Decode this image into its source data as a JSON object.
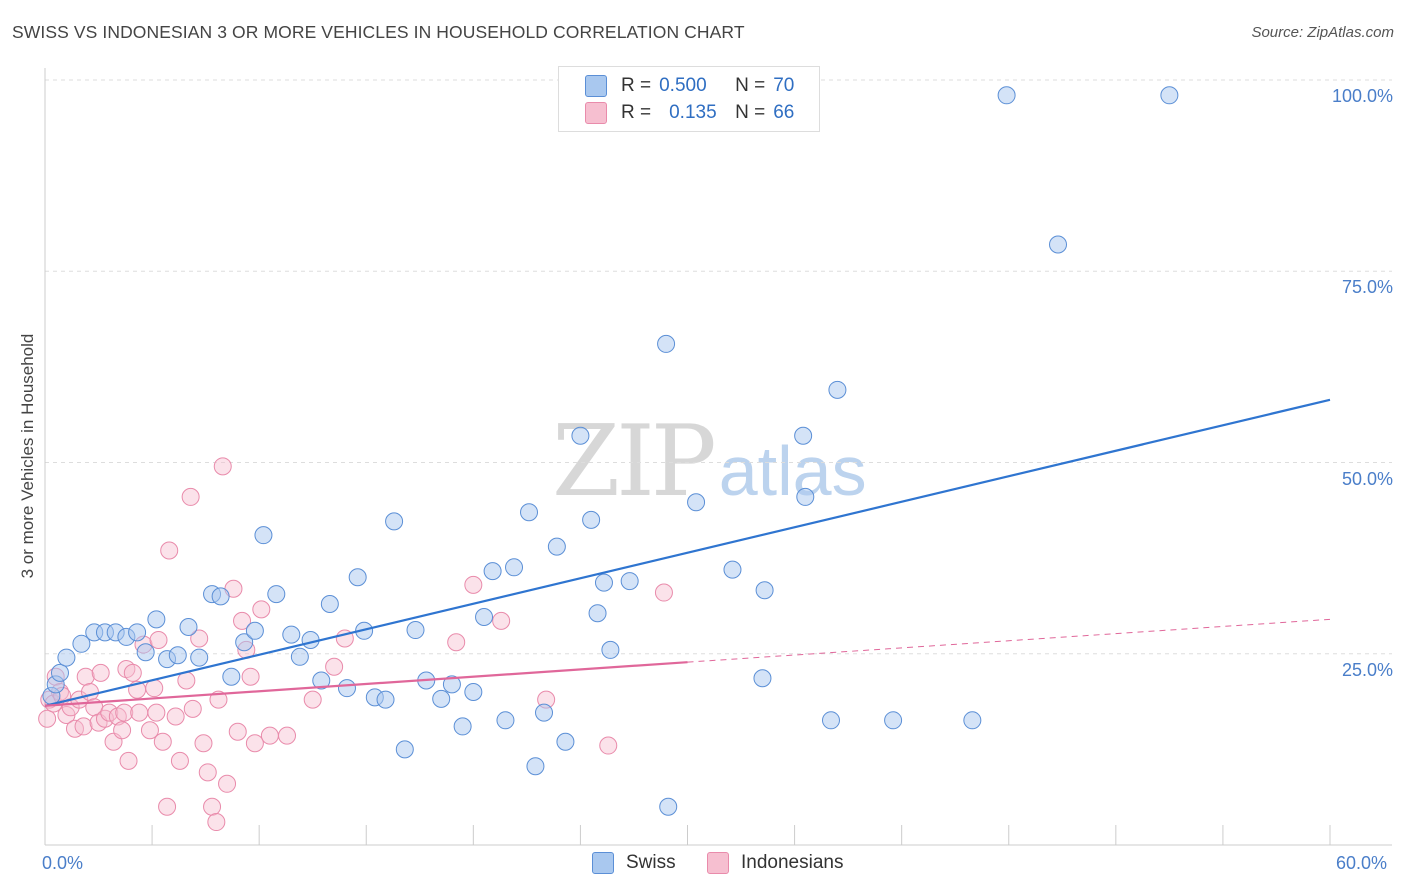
{
  "title": "SWISS VS INDONESIAN 3 OR MORE VEHICLES IN HOUSEHOLD CORRELATION CHART",
  "source": "Source: ZipAtlas.com",
  "watermark": {
    "zip": "ZIP",
    "atlas": "atlas"
  },
  "colors": {
    "swiss_fill": "#a9c8ef",
    "swiss_stroke": "#5b8fd6",
    "swiss_line": "#2f75d0",
    "indo_fill": "#f6bfd0",
    "indo_stroke": "#e98bab",
    "indo_line": "#e0679a",
    "tick_text": "#4a7ec9",
    "grid": "#dddddd"
  },
  "legend": {
    "rows": [
      {
        "r_label": "R =",
        "r_value": "0.500",
        "n_label": "N =",
        "n_value": "70"
      },
      {
        "r_label": "R =",
        "r_value": "0.135",
        "n_label": "N =",
        "n_value": "66"
      }
    ]
  },
  "bottom_legend": {
    "swiss": "Swiss",
    "indonesians": "Indonesians"
  },
  "chart_data": {
    "type": "scatter",
    "title": "SWISS VS INDONESIAN 3 OR MORE VEHICLES IN HOUSEHOLD CORRELATION CHART",
    "xlabel": "",
    "ylabel": "3 or more Vehicles in Household",
    "xlim": [
      0,
      60
    ],
    "ylim": [
      0,
      100
    ],
    "x_tick_labels": [
      "0.0%",
      "60.0%"
    ],
    "y_ticks": [
      25,
      50,
      75,
      100
    ],
    "y_tick_labels": [
      "25.0%",
      "50.0%",
      "75.0%",
      "100.0%"
    ],
    "series": [
      {
        "name": "Swiss",
        "r": 0.5,
        "n": 70,
        "trend": {
          "x0": 0,
          "y0": 18.2,
          "x1": 60,
          "y1": 58.2
        },
        "points": [
          [
            0.3,
            19.5
          ],
          [
            0.5,
            21.0
          ],
          [
            0.7,
            22.5
          ],
          [
            1.0,
            24.5
          ],
          [
            1.7,
            26.3
          ],
          [
            2.3,
            27.8
          ],
          [
            2.8,
            27.8
          ],
          [
            3.3,
            27.8
          ],
          [
            3.8,
            27.2
          ],
          [
            4.3,
            27.8
          ],
          [
            4.7,
            25.2
          ],
          [
            5.2,
            29.5
          ],
          [
            5.7,
            24.3
          ],
          [
            6.2,
            24.8
          ],
          [
            6.7,
            28.5
          ],
          [
            7.2,
            24.5
          ],
          [
            7.8,
            32.8
          ],
          [
            8.2,
            32.5
          ],
          [
            8.7,
            22.0
          ],
          [
            9.3,
            26.5
          ],
          [
            9.8,
            28.0
          ],
          [
            10.2,
            40.5
          ],
          [
            10.8,
            32.8
          ],
          [
            11.5,
            27.5
          ],
          [
            11.9,
            24.6
          ],
          [
            12.4,
            26.8
          ],
          [
            12.9,
            21.5
          ],
          [
            13.3,
            31.5
          ],
          [
            14.1,
            20.5
          ],
          [
            14.6,
            35.0
          ],
          [
            14.9,
            28.0
          ],
          [
            15.4,
            19.3
          ],
          [
            15.9,
            19.0
          ],
          [
            16.3,
            42.3
          ],
          [
            16.8,
            12.5
          ],
          [
            17.3,
            28.1
          ],
          [
            17.8,
            21.5
          ],
          [
            18.5,
            19.1
          ],
          [
            19.0,
            21.0
          ],
          [
            19.5,
            15.5
          ],
          [
            20.0,
            20.0
          ],
          [
            20.5,
            29.8
          ],
          [
            20.9,
            35.8
          ],
          [
            21.5,
            16.3
          ],
          [
            21.9,
            36.3
          ],
          [
            22.6,
            43.5
          ],
          [
            22.9,
            10.3
          ],
          [
            23.3,
            17.3
          ],
          [
            23.9,
            39.0
          ],
          [
            24.3,
            13.5
          ],
          [
            25.0,
            53.5
          ],
          [
            25.5,
            42.5
          ],
          [
            25.8,
            30.3
          ],
          [
            26.1,
            34.3
          ],
          [
            26.4,
            25.5
          ],
          [
            27.3,
            34.5
          ],
          [
            29.0,
            65.5
          ],
          [
            29.1,
            5.0
          ],
          [
            30.4,
            44.8
          ],
          [
            32.1,
            36.0
          ],
          [
            33.5,
            21.8
          ],
          [
            33.6,
            33.3
          ],
          [
            35.4,
            53.5
          ],
          [
            35.5,
            45.5
          ],
          [
            36.7,
            16.3
          ],
          [
            37.0,
            59.5
          ],
          [
            39.6,
            16.3
          ],
          [
            43.3,
            16.3
          ],
          [
            44.9,
            98.0
          ],
          [
            47.3,
            78.5
          ],
          [
            52.5,
            98.0
          ]
        ]
      },
      {
        "name": "Indonesians",
        "r": 0.135,
        "n": 66,
        "trend": {
          "x0": 0,
          "y0": 18.2,
          "x1": 30,
          "y1": 23.9
        },
        "trend_dashed": {
          "x0": 30,
          "y0": 23.9,
          "x1": 60,
          "y1": 29.5
        },
        "points": [
          [
            0.1,
            16.5
          ],
          [
            0.2,
            19.0
          ],
          [
            0.4,
            18.5
          ],
          [
            0.5,
            22.0
          ],
          [
            0.7,
            20.0
          ],
          [
            0.8,
            19.5
          ],
          [
            1.0,
            17.0
          ],
          [
            1.2,
            18.0
          ],
          [
            1.4,
            15.2
          ],
          [
            1.6,
            19.0
          ],
          [
            1.8,
            15.5
          ],
          [
            1.9,
            22.0
          ],
          [
            2.1,
            20.0
          ],
          [
            2.3,
            18.0
          ],
          [
            2.5,
            16.0
          ],
          [
            2.6,
            22.5
          ],
          [
            2.8,
            16.5
          ],
          [
            3.0,
            17.3
          ],
          [
            3.2,
            13.5
          ],
          [
            3.4,
            16.8
          ],
          [
            3.6,
            15.0
          ],
          [
            3.7,
            17.3
          ],
          [
            3.8,
            23.0
          ],
          [
            3.9,
            11.0
          ],
          [
            4.1,
            22.5
          ],
          [
            4.3,
            20.3
          ],
          [
            4.4,
            17.3
          ],
          [
            4.6,
            26.2
          ],
          [
            4.9,
            15.0
          ],
          [
            5.1,
            20.5
          ],
          [
            5.2,
            17.3
          ],
          [
            5.3,
            26.8
          ],
          [
            5.5,
            13.5
          ],
          [
            5.7,
            5.0
          ],
          [
            5.8,
            38.5
          ],
          [
            6.1,
            16.8
          ],
          [
            6.3,
            11.0
          ],
          [
            6.6,
            21.5
          ],
          [
            6.8,
            45.5
          ],
          [
            6.9,
            17.8
          ],
          [
            7.2,
            27.0
          ],
          [
            7.4,
            13.3
          ],
          [
            7.6,
            9.5
          ],
          [
            7.8,
            5.0
          ],
          [
            8.0,
            3.0
          ],
          [
            8.1,
            19.0
          ],
          [
            8.3,
            49.5
          ],
          [
            8.5,
            8.0
          ],
          [
            8.8,
            33.5
          ],
          [
            9.0,
            14.8
          ],
          [
            9.2,
            29.3
          ],
          [
            9.4,
            25.5
          ],
          [
            9.6,
            22.0
          ],
          [
            9.8,
            13.3
          ],
          [
            10.1,
            30.8
          ],
          [
            10.5,
            14.3
          ],
          [
            11.3,
            14.3
          ],
          [
            12.5,
            19.0
          ],
          [
            13.5,
            23.3
          ],
          [
            14.0,
            27.0
          ],
          [
            19.2,
            26.5
          ],
          [
            20.0,
            34.0
          ],
          [
            21.3,
            29.3
          ],
          [
            23.4,
            19.0
          ],
          [
            26.3,
            13.0
          ],
          [
            28.9,
            33.0
          ]
        ]
      }
    ]
  }
}
